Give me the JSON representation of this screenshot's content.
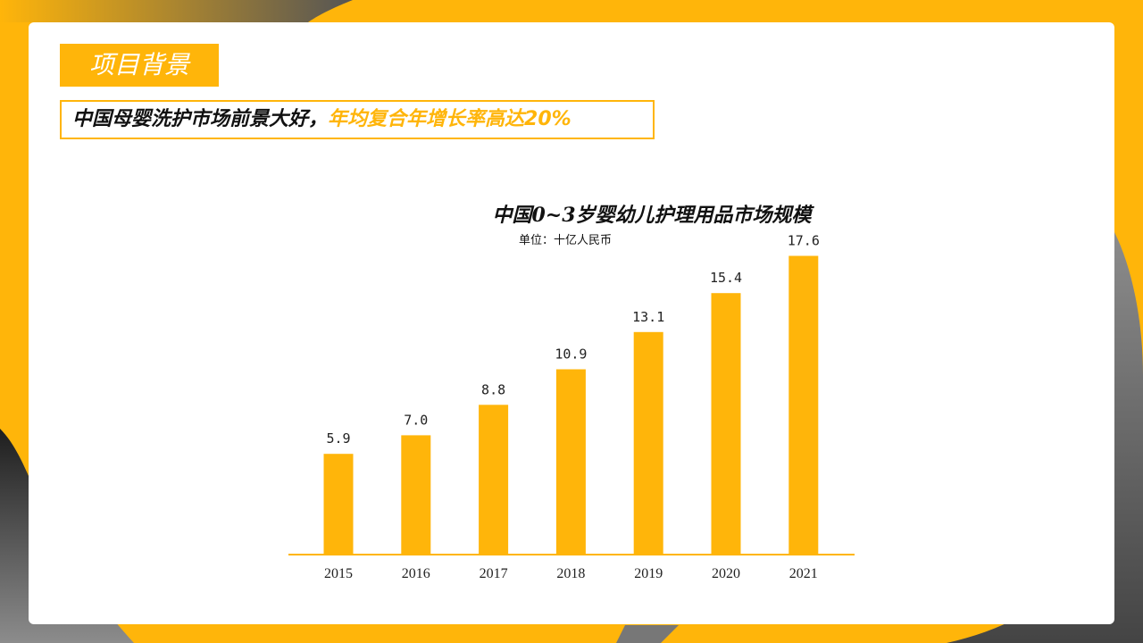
{
  "colors": {
    "accent": "#FFB50A",
    "dark": "#444444",
    "text": "#111111",
    "card": "#FFFFFF"
  },
  "slide": {
    "section_title": "项目背景",
    "headline_main": "中国母婴洗护市场前景大好，",
    "headline_accent": "年均复合年增长率高达20%"
  },
  "chart_data": {
    "type": "bar",
    "title": "中国0~3岁婴幼儿护理用品市场规模",
    "subtitle": "单位：十亿人民币",
    "categories": [
      "2015",
      "2016",
      "2017",
      "2018",
      "2019",
      "2020",
      "2021"
    ],
    "values": [
      5.9,
      7.0,
      8.8,
      10.9,
      13.1,
      15.4,
      17.6
    ],
    "value_labels": [
      "5.9",
      "7.0",
      "8.8",
      "10.9",
      "13.1",
      "15.4",
      "17.6"
    ],
    "ylim": [
      0,
      19
    ],
    "grid": false,
    "legend": "none"
  }
}
